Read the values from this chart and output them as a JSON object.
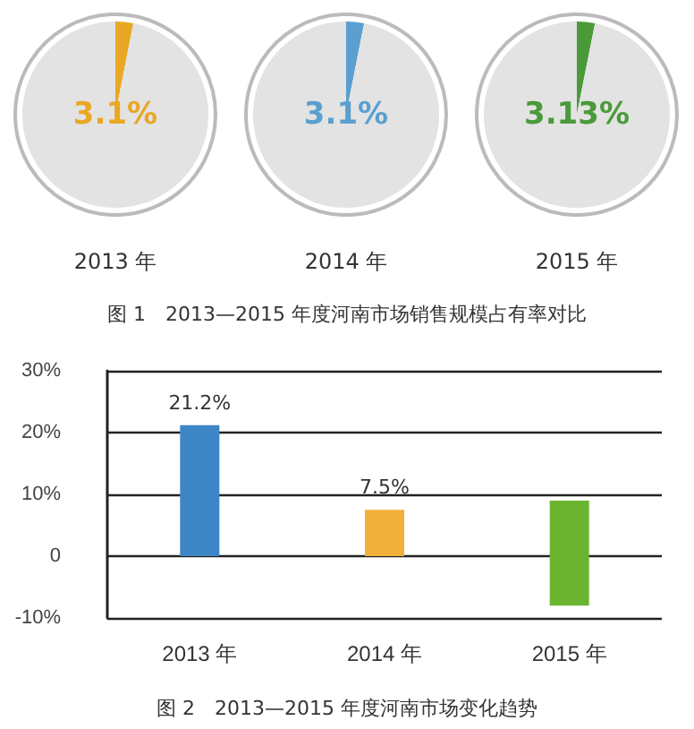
{
  "chart_data": [
    {
      "type": "pie",
      "xlabel": "2013 年",
      "categories": [
        null,
        null
      ],
      "values": [
        3.1,
        96.9
      ],
      "colors": [
        "#e8a825",
        "#e3e3e3"
      ],
      "value_labels": [
        "3.1%",
        null
      ]
    },
    {
      "type": "pie",
      "xlabel": "2014 年",
      "categories": [
        null,
        null
      ],
      "values": [
        3.1,
        96.9
      ],
      "colors": [
        "#5a9fd0",
        "#e3e3e3"
      ],
      "value_labels": [
        "3.1%",
        null
      ]
    },
    {
      "type": "pie",
      "xlabel": "2015 年",
      "categories": [
        null,
        null
      ],
      "values": [
        3.13,
        96.87
      ],
      "colors": [
        "#4a9a3a",
        "#e3e3e3"
      ],
      "value_labels": [
        "3.13%",
        null
      ],
      "annotations": [
        "图 1　2013—2015 年度河南市场销售规模占有率对比"
      ]
    },
    {
      "type": "bar",
      "categories": [
        "2013 年",
        "2014 年",
        "2015 年"
      ],
      "values": [
        21.2,
        7.5,
        17
      ],
      "base": [
        0,
        0,
        -8
      ],
      "colors": [
        "#3d86c6",
        "#f0b13a",
        "#6ab42f"
      ],
      "value_labels": [
        "21.2%",
        "7.5%",
        null
      ],
      "ylim": [
        -10,
        30
      ],
      "yticks": [
        {
          "value": -10,
          "label": "-10%"
        },
        0,
        {
          "value": 10,
          "label": "10%"
        },
        {
          "value": 20,
          "label": "20%"
        },
        {
          "value": 30,
          "label": "30%"
        }
      ],
      "grid": "y",
      "annotations": [
        "图 2　2013—2015 年度河南市场变化趋势"
      ]
    }
  ]
}
